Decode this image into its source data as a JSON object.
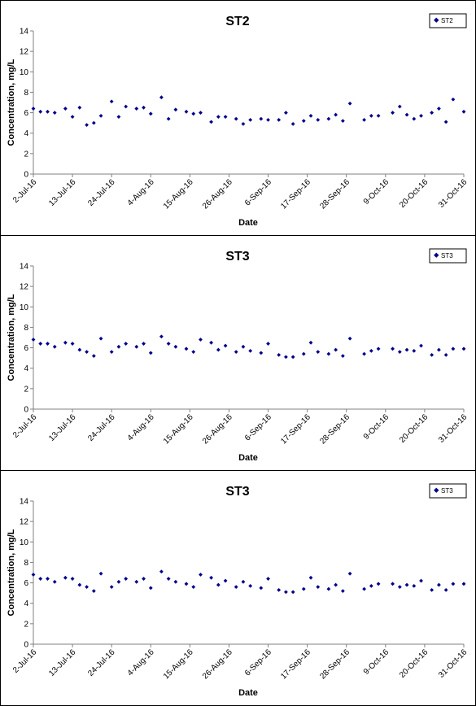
{
  "colors": {
    "marker": "#00008B",
    "axis": "#808080",
    "text": "#000000"
  },
  "chart_data": [
    {
      "type": "scatter",
      "title": "ST2",
      "xlabel": "Date",
      "ylabel": "Concentration, mg/L",
      "ylim": [
        0,
        14
      ],
      "yticks": [
        "0",
        "2",
        "4",
        "6",
        "8",
        "10",
        "12",
        "14"
      ],
      "xlim": [
        "2016-07-02",
        "2016-10-31"
      ],
      "xticks": [
        "2-Jul-16",
        "13-Jul-16",
        "24-Jul-16",
        "4-Aug-16",
        "15-Aug-16",
        "26-Aug-16",
        "6-Sep-16",
        "17-Sep-16",
        "28-Sep-16",
        "9-Oct-16",
        "20-Oct-16",
        "31-Oct-16"
      ],
      "grid": false,
      "legend_position": "top-right",
      "series": [
        {
          "name": "ST2",
          "points": [
            [
              "2016-07-02",
              6.4
            ],
            [
              "2016-07-04",
              6.1
            ],
            [
              "2016-07-06",
              6.1
            ],
            [
              "2016-07-08",
              6.0
            ],
            [
              "2016-07-11",
              6.4
            ],
            [
              "2016-07-13",
              5.6
            ],
            [
              "2016-07-15",
              6.5
            ],
            [
              "2016-07-17",
              4.8
            ],
            [
              "2016-07-19",
              5.0
            ],
            [
              "2016-07-21",
              5.7
            ],
            [
              "2016-07-24",
              7.1
            ],
            [
              "2016-07-26",
              5.6
            ],
            [
              "2016-07-28",
              6.6
            ],
            [
              "2016-07-31",
              6.4
            ],
            [
              "2016-08-02",
              6.5
            ],
            [
              "2016-08-04",
              5.9
            ],
            [
              "2016-08-07",
              7.5
            ],
            [
              "2016-08-09",
              5.4
            ],
            [
              "2016-08-11",
              6.3
            ],
            [
              "2016-08-14",
              6.1
            ],
            [
              "2016-08-16",
              5.9
            ],
            [
              "2016-08-18",
              6.0
            ],
            [
              "2016-08-21",
              5.1
            ],
            [
              "2016-08-23",
              5.6
            ],
            [
              "2016-08-25",
              5.6
            ],
            [
              "2016-08-28",
              5.4
            ],
            [
              "2016-08-30",
              4.9
            ],
            [
              "2016-09-01",
              5.3
            ],
            [
              "2016-09-04",
              5.4
            ],
            [
              "2016-09-06",
              5.3
            ],
            [
              "2016-09-09",
              5.3
            ],
            [
              "2016-09-11",
              6.0
            ],
            [
              "2016-09-13",
              4.9
            ],
            [
              "2016-09-16",
              5.2
            ],
            [
              "2016-09-18",
              5.7
            ],
            [
              "2016-09-20",
              5.3
            ],
            [
              "2016-09-23",
              5.4
            ],
            [
              "2016-09-25",
              5.8
            ],
            [
              "2016-09-27",
              5.2
            ],
            [
              "2016-09-29",
              6.9
            ],
            [
              "2016-10-03",
              5.3
            ],
            [
              "2016-10-05",
              5.7
            ],
            [
              "2016-10-07",
              5.7
            ],
            [
              "2016-10-11",
              6.0
            ],
            [
              "2016-10-13",
              6.6
            ],
            [
              "2016-10-15",
              5.8
            ],
            [
              "2016-10-17",
              5.4
            ],
            [
              "2016-10-19",
              5.7
            ],
            [
              "2016-10-22",
              6.0
            ],
            [
              "2016-10-24",
              6.4
            ],
            [
              "2016-10-26",
              5.1
            ],
            [
              "2016-10-28",
              7.3
            ],
            [
              "2016-10-31",
              6.1
            ]
          ]
        }
      ]
    },
    {
      "type": "scatter",
      "title": "ST3",
      "xlabel": "Date",
      "ylabel": "Concentration, mg/L",
      "ylim": [
        0,
        14
      ],
      "yticks": [
        "0",
        "2",
        "4",
        "6",
        "8",
        "10",
        "12",
        "14"
      ],
      "xlim": [
        "2016-07-02",
        "2016-10-31"
      ],
      "xticks": [
        "2-Jul-16",
        "13-Jul-16",
        "24-Jul-16",
        "4-Aug-16",
        "15-Aug-16",
        "26-Aug-16",
        "6-Sep-16",
        "17-Sep-16",
        "28-Sep-16",
        "9-Oct-16",
        "20-Oct-16",
        "31-Oct-16"
      ],
      "grid": false,
      "legend_position": "top-right",
      "series": [
        {
          "name": "ST3",
          "points": [
            [
              "2016-07-02",
              6.8
            ],
            [
              "2016-07-04",
              6.4
            ],
            [
              "2016-07-06",
              6.4
            ],
            [
              "2016-07-08",
              6.1
            ],
            [
              "2016-07-11",
              6.5
            ],
            [
              "2016-07-13",
              6.4
            ],
            [
              "2016-07-15",
              5.8
            ],
            [
              "2016-07-17",
              5.6
            ],
            [
              "2016-07-19",
              5.2
            ],
            [
              "2016-07-21",
              6.9
            ],
            [
              "2016-07-24",
              5.6
            ],
            [
              "2016-07-26",
              6.1
            ],
            [
              "2016-07-28",
              6.4
            ],
            [
              "2016-07-31",
              6.1
            ],
            [
              "2016-08-02",
              6.4
            ],
            [
              "2016-08-04",
              5.5
            ],
            [
              "2016-08-07",
              7.1
            ],
            [
              "2016-08-09",
              6.4
            ],
            [
              "2016-08-11",
              6.1
            ],
            [
              "2016-08-14",
              5.9
            ],
            [
              "2016-08-16",
              5.6
            ],
            [
              "2016-08-18",
              6.8
            ],
            [
              "2016-08-21",
              6.5
            ],
            [
              "2016-08-23",
              5.8
            ],
            [
              "2016-08-25",
              6.2
            ],
            [
              "2016-08-28",
              5.6
            ],
            [
              "2016-08-30",
              6.1
            ],
            [
              "2016-09-01",
              5.7
            ],
            [
              "2016-09-04",
              5.5
            ],
            [
              "2016-09-06",
              6.4
            ],
            [
              "2016-09-09",
              5.3
            ],
            [
              "2016-09-11",
              5.1
            ],
            [
              "2016-09-13",
              5.1
            ],
            [
              "2016-09-16",
              5.4
            ],
            [
              "2016-09-18",
              6.5
            ],
            [
              "2016-09-20",
              5.6
            ],
            [
              "2016-09-23",
              5.4
            ],
            [
              "2016-09-25",
              5.8
            ],
            [
              "2016-09-27",
              5.2
            ],
            [
              "2016-09-29",
              6.9
            ],
            [
              "2016-10-03",
              5.4
            ],
            [
              "2016-10-05",
              5.7
            ],
            [
              "2016-10-07",
              5.9
            ],
            [
              "2016-10-11",
              5.9
            ],
            [
              "2016-10-13",
              5.6
            ],
            [
              "2016-10-15",
              5.8
            ],
            [
              "2016-10-17",
              5.7
            ],
            [
              "2016-10-19",
              6.2
            ],
            [
              "2016-10-22",
              5.3
            ],
            [
              "2016-10-24",
              5.8
            ],
            [
              "2016-10-26",
              5.3
            ],
            [
              "2016-10-28",
              5.9
            ],
            [
              "2016-10-31",
              5.9
            ]
          ]
        }
      ]
    },
    {
      "type": "scatter",
      "title": "ST3",
      "xlabel": "Date",
      "ylabel": "Concentration, mg/L",
      "ylim": [
        0,
        14
      ],
      "yticks": [
        "0",
        "2",
        "4",
        "6",
        "8",
        "10",
        "12",
        "14"
      ],
      "xlim": [
        "2016-07-02",
        "2016-10-31"
      ],
      "xticks": [
        "2-Jul-16",
        "13-Jul-16",
        "24-Jul-16",
        "4-Aug-16",
        "15-Aug-16",
        "26-Aug-16",
        "6-Sep-16",
        "17-Sep-16",
        "28-Sep-16",
        "9-Oct-16",
        "20-Oct-16",
        "31-Oct-16"
      ],
      "grid": false,
      "legend_position": "top-right",
      "series": [
        {
          "name": "ST3",
          "points": [
            [
              "2016-07-02",
              6.8
            ],
            [
              "2016-07-04",
              6.4
            ],
            [
              "2016-07-06",
              6.4
            ],
            [
              "2016-07-08",
              6.1
            ],
            [
              "2016-07-11",
              6.5
            ],
            [
              "2016-07-13",
              6.4
            ],
            [
              "2016-07-15",
              5.8
            ],
            [
              "2016-07-17",
              5.6
            ],
            [
              "2016-07-19",
              5.2
            ],
            [
              "2016-07-21",
              6.9
            ],
            [
              "2016-07-24",
              5.6
            ],
            [
              "2016-07-26",
              6.1
            ],
            [
              "2016-07-28",
              6.4
            ],
            [
              "2016-07-31",
              6.1
            ],
            [
              "2016-08-02",
              6.4
            ],
            [
              "2016-08-04",
              5.5
            ],
            [
              "2016-08-07",
              7.1
            ],
            [
              "2016-08-09",
              6.4
            ],
            [
              "2016-08-11",
              6.1
            ],
            [
              "2016-08-14",
              5.9
            ],
            [
              "2016-08-16",
              5.6
            ],
            [
              "2016-08-18",
              6.8
            ],
            [
              "2016-08-21",
              6.5
            ],
            [
              "2016-08-23",
              5.8
            ],
            [
              "2016-08-25",
              6.2
            ],
            [
              "2016-08-28",
              5.6
            ],
            [
              "2016-08-30",
              6.1
            ],
            [
              "2016-09-01",
              5.7
            ],
            [
              "2016-09-04",
              5.5
            ],
            [
              "2016-09-06",
              6.4
            ],
            [
              "2016-09-09",
              5.3
            ],
            [
              "2016-09-11",
              5.1
            ],
            [
              "2016-09-13",
              5.1
            ],
            [
              "2016-09-16",
              5.4
            ],
            [
              "2016-09-18",
              6.5
            ],
            [
              "2016-09-20",
              5.6
            ],
            [
              "2016-09-23",
              5.4
            ],
            [
              "2016-09-25",
              5.8
            ],
            [
              "2016-09-27",
              5.2
            ],
            [
              "2016-09-29",
              6.9
            ],
            [
              "2016-10-03",
              5.4
            ],
            [
              "2016-10-05",
              5.7
            ],
            [
              "2016-10-07",
              5.9
            ],
            [
              "2016-10-11",
              5.9
            ],
            [
              "2016-10-13",
              5.6
            ],
            [
              "2016-10-15",
              5.8
            ],
            [
              "2016-10-17",
              5.7
            ],
            [
              "2016-10-19",
              6.2
            ],
            [
              "2016-10-22",
              5.3
            ],
            [
              "2016-10-24",
              5.8
            ],
            [
              "2016-10-26",
              5.3
            ],
            [
              "2016-10-28",
              5.9
            ],
            [
              "2016-10-31",
              5.9
            ]
          ]
        }
      ]
    }
  ]
}
